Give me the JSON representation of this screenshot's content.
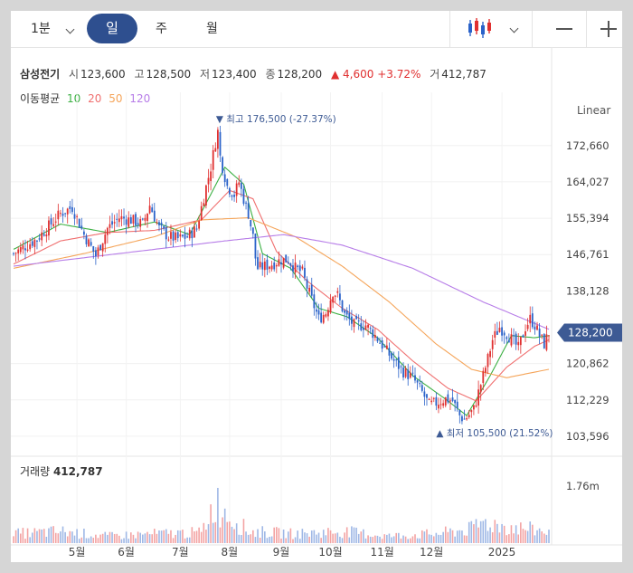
{
  "toolbar": {
    "period": "1분",
    "tabs": [
      "일",
      "주",
      "월"
    ]
  },
  "stock": {
    "name": "삼성전기",
    "open_label": "시",
    "open": "123,600",
    "high_label": "고",
    "high": "128,500",
    "low_label": "저",
    "low": "123,400",
    "close_label": "종",
    "close": "128,200",
    "change": "▲ 4,600 +3.72%",
    "volume_label": "거",
    "volume": "412,787"
  },
  "moving_average": {
    "label": "이동평균",
    "periods": [
      "10",
      "20",
      "50",
      "120"
    ],
    "colors": [
      "#3cb043",
      "#f07070",
      "#f5a55a",
      "#b77de8"
    ]
  },
  "scale_type": "Linear",
  "volume_panel": {
    "label": "거래량",
    "value": "412,787",
    "axis_tick": "1.76m"
  },
  "colors": {
    "up": "#e03030",
    "down": "#2a62c9",
    "price_tag": "#3d5a94"
  },
  "chart_data": {
    "type": "candlestick",
    "x_ticks": [
      "5월",
      "6월",
      "7월",
      "8월",
      "9월",
      "10월",
      "11월",
      "12월",
      "2025"
    ],
    "y_ticks": [
      172660,
      164027,
      155394,
      146761,
      138128,
      120862,
      112229,
      103596
    ],
    "y_tick_labels": [
      "172,660",
      "164,027",
      "155,394",
      "146,761",
      "138,128",
      "120,862",
      "112,229",
      "103,596"
    ],
    "ylim": [
      101000,
      181000
    ],
    "current_price": 128200,
    "current_price_label": "128,200",
    "high_annotation": {
      "text": "▼ 최고 176,500 (-27.37%)",
      "value": 176500
    },
    "low_annotation": {
      "text": "▲ 최저 105,500 (21.52%)",
      "value": 105500
    },
    "close_path": [
      [
        0,
        147000
      ],
      [
        10,
        150500
      ],
      [
        20,
        156500
      ],
      [
        25,
        158000
      ],
      [
        30,
        151500
      ],
      [
        35,
        146500
      ],
      [
        40,
        153000
      ],
      [
        45,
        155500
      ],
      [
        50,
        155000
      ],
      [
        55,
        154000
      ],
      [
        58,
        158500
      ],
      [
        62,
        153000
      ],
      [
        66,
        151000
      ],
      [
        70,
        150500
      ],
      [
        74,
        151000
      ],
      [
        78,
        153000
      ],
      [
        81,
        160500
      ],
      [
        84,
        167500
      ],
      [
        86,
        173500
      ],
      [
        87,
        176000
      ],
      [
        88,
        170000
      ],
      [
        91,
        163000
      ],
      [
        94,
        161000
      ],
      [
        96,
        164000
      ],
      [
        98,
        160000
      ],
      [
        100,
        156500
      ],
      [
        102,
        151000
      ],
      [
        103,
        146000
      ],
      [
        104,
        143500
      ],
      [
        107,
        144000
      ],
      [
        110,
        144500
      ],
      [
        114,
        145500
      ],
      [
        117,
        145500
      ],
      [
        120,
        143500
      ],
      [
        123,
        142500
      ],
      [
        125,
        139000
      ],
      [
        128,
        134500
      ],
      [
        130,
        131500
      ],
      [
        133,
        133000
      ],
      [
        136,
        138000
      ],
      [
        138,
        137000
      ],
      [
        141,
        132500
      ],
      [
        145,
        130000
      ],
      [
        150,
        130000
      ],
      [
        154,
        127500
      ],
      [
        158,
        124500
      ],
      [
        162,
        121500
      ],
      [
        166,
        119000
      ],
      [
        170,
        117500
      ],
      [
        174,
        114000
      ],
      [
        177,
        111000
      ],
      [
        180,
        111500
      ],
      [
        184,
        112500
      ],
      [
        187,
        112000
      ],
      [
        190,
        108500
      ],
      [
        192,
        107500
      ],
      [
        196,
        110000
      ],
      [
        199,
        116000
      ],
      [
        202,
        122000
      ],
      [
        204,
        126500
      ],
      [
        207,
        129500
      ],
      [
        210,
        128000
      ],
      [
        213,
        126000
      ],
      [
        215,
        124500
      ],
      [
        218,
        129500
      ],
      [
        220,
        131500
      ],
      [
        222,
        130000
      ],
      [
        224,
        127500
      ],
      [
        226,
        125500
      ],
      [
        228,
        128200
      ]
    ],
    "volume_path": [
      [
        0,
        0.08
      ],
      [
        20,
        0.1
      ],
      [
        40,
        0.06
      ],
      [
        60,
        0.08
      ],
      [
        80,
        0.09
      ],
      [
        86,
        0.36
      ],
      [
        88,
        0.3
      ],
      [
        100,
        0.1
      ],
      [
        120,
        0.08
      ],
      [
        140,
        0.1
      ],
      [
        160,
        0.06
      ],
      [
        180,
        0.08
      ],
      [
        195,
        0.12
      ],
      [
        200,
        0.18
      ],
      [
        210,
        0.14
      ],
      [
        228,
        0.1
      ]
    ],
    "ma10_path": [
      [
        0,
        148000
      ],
      [
        20,
        154000
      ],
      [
        40,
        152000
      ],
      [
        60,
        154500
      ],
      [
        75,
        151500
      ],
      [
        83,
        160000
      ],
      [
        90,
        167500
      ],
      [
        98,
        163500
      ],
      [
        106,
        147000
      ],
      [
        118,
        143500
      ],
      [
        130,
        134000
      ],
      [
        142,
        132000
      ],
      [
        155,
        127000
      ],
      [
        170,
        118000
      ],
      [
        185,
        112000
      ],
      [
        193,
        108500
      ],
      [
        203,
        118000
      ],
      [
        212,
        127500
      ],
      [
        222,
        127000
      ],
      [
        228,
        127500
      ]
    ],
    "ma20_path": [
      [
        0,
        144500
      ],
      [
        20,
        150000
      ],
      [
        40,
        152000
      ],
      [
        60,
        152500
      ],
      [
        80,
        155000
      ],
      [
        92,
        162000
      ],
      [
        102,
        160000
      ],
      [
        112,
        147500
      ],
      [
        125,
        140500
      ],
      [
        140,
        134000
      ],
      [
        155,
        129000
      ],
      [
        170,
        121500
      ],
      [
        185,
        115000
      ],
      [
        197,
        112000
      ],
      [
        210,
        120000
      ],
      [
        222,
        125000
      ],
      [
        228,
        126500
      ]
    ],
    "ma50_path": [
      [
        0,
        143500
      ],
      [
        30,
        147000
      ],
      [
        60,
        151000
      ],
      [
        80,
        155000
      ],
      [
        100,
        155500
      ],
      [
        120,
        151000
      ],
      [
        140,
        144000
      ],
      [
        160,
        135500
      ],
      [
        180,
        125500
      ],
      [
        195,
        119500
      ],
      [
        210,
        117500
      ],
      [
        228,
        119500
      ]
    ],
    "ma120_path": [
      [
        0,
        144000
      ],
      [
        30,
        146000
      ],
      [
        60,
        148000
      ],
      [
        90,
        150000
      ],
      [
        115,
        151500
      ],
      [
        140,
        149000
      ],
      [
        170,
        143500
      ],
      [
        200,
        135500
      ],
      [
        215,
        132000
      ],
      [
        228,
        129000
      ]
    ]
  }
}
